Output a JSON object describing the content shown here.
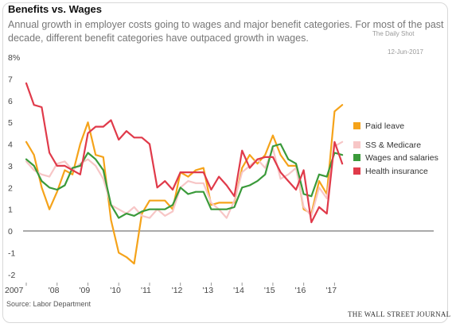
{
  "header": {
    "title": "Benefits vs. Wages",
    "subtitle": "Annual growth in employer costs going to wages and major benefit categories. For most of the past decade, different benefit categories have outpaced growth in wages."
  },
  "watermark": {
    "source_label": "The Daily Shot",
    "date_label": "12-Jun-2017"
  },
  "footer": {
    "source": "Source: Labor Department",
    "publisher": "THE WALL STREET JOURNAL"
  },
  "chart_data": {
    "type": "line",
    "y_unit_top_label": "8%",
    "y_ticks": [
      "7",
      "6",
      "5",
      "4",
      "3",
      "2",
      "1",
      "0",
      "-1",
      "-2"
    ],
    "x_ticks": [
      "2007",
      "'08",
      "'09",
      "'10",
      "'11",
      "'12",
      "'13",
      "'14",
      "'15",
      "'16",
      "'17"
    ],
    "xlim": [
      2007.0,
      2017.3
    ],
    "ylim": [
      -2.3,
      8.0
    ],
    "zero_line": true,
    "legend_position": "right",
    "series": [
      {
        "name": "Paid leave",
        "color": "#f5a31a",
        "points": [
          [
            2007.0,
            4.1
          ],
          [
            2007.25,
            3.5
          ],
          [
            2007.5,
            2.0
          ],
          [
            2007.75,
            1.0
          ],
          [
            2008.0,
            1.8
          ],
          [
            2008.25,
            2.8
          ],
          [
            2008.5,
            2.6
          ],
          [
            2008.75,
            4.0
          ],
          [
            2009.0,
            5.0
          ],
          [
            2009.25,
            3.5
          ],
          [
            2009.5,
            3.4
          ],
          [
            2009.75,
            0.5
          ],
          [
            2010.0,
            -1.0
          ],
          [
            2010.25,
            -1.2
          ],
          [
            2010.5,
            -1.5
          ],
          [
            2010.75,
            0.8
          ],
          [
            2011.0,
            1.4
          ],
          [
            2011.25,
            1.4
          ],
          [
            2011.5,
            1.4
          ],
          [
            2011.75,
            1.0
          ],
          [
            2012.0,
            2.7
          ],
          [
            2012.25,
            2.5
          ],
          [
            2012.5,
            2.8
          ],
          [
            2012.75,
            2.9
          ],
          [
            2013.0,
            1.2
          ],
          [
            2013.25,
            1.3
          ],
          [
            2013.5,
            1.3
          ],
          [
            2013.75,
            1.3
          ],
          [
            2014.0,
            2.9
          ],
          [
            2014.25,
            3.5
          ],
          [
            2014.5,
            3.1
          ],
          [
            2014.75,
            3.5
          ],
          [
            2015.0,
            4.4
          ],
          [
            2015.25,
            3.5
          ],
          [
            2015.5,
            3.0
          ],
          [
            2015.75,
            3.0
          ],
          [
            2016.0,
            1.0
          ],
          [
            2016.25,
            0.8
          ],
          [
            2016.5,
            2.3
          ],
          [
            2016.75,
            1.7
          ],
          [
            2017.0,
            5.5
          ],
          [
            2017.25,
            5.8
          ]
        ]
      },
      {
        "name": "SS & Medicare",
        "color": "#f7c6c6",
        "points": [
          [
            2007.0,
            3.2
          ],
          [
            2007.25,
            2.8
          ],
          [
            2007.5,
            2.6
          ],
          [
            2007.75,
            2.5
          ],
          [
            2008.0,
            3.1
          ],
          [
            2008.25,
            3.2
          ],
          [
            2008.5,
            2.8
          ],
          [
            2008.75,
            3.1
          ],
          [
            2009.0,
            3.3
          ],
          [
            2009.25,
            3.0
          ],
          [
            2009.5,
            2.4
          ],
          [
            2009.75,
            1.2
          ],
          [
            2010.0,
            1.0
          ],
          [
            2010.25,
            0.8
          ],
          [
            2010.5,
            1.1
          ],
          [
            2010.75,
            0.7
          ],
          [
            2011.0,
            0.6
          ],
          [
            2011.25,
            1.0
          ],
          [
            2011.5,
            0.7
          ],
          [
            2011.75,
            0.9
          ],
          [
            2012.0,
            2.0
          ],
          [
            2012.25,
            2.3
          ],
          [
            2012.5,
            2.2
          ],
          [
            2012.75,
            2.2
          ],
          [
            2013.0,
            1.3
          ],
          [
            2013.25,
            1.0
          ],
          [
            2013.5,
            0.6
          ],
          [
            2013.75,
            1.4
          ],
          [
            2014.0,
            2.7
          ],
          [
            2014.25,
            3.0
          ],
          [
            2014.5,
            3.3
          ],
          [
            2014.75,
            2.9
          ],
          [
            2015.0,
            3.8
          ],
          [
            2015.25,
            2.4
          ],
          [
            2015.5,
            2.6
          ],
          [
            2015.75,
            2.9
          ],
          [
            2016.0,
            1.1
          ],
          [
            2016.25,
            0.7
          ],
          [
            2016.5,
            2.0
          ],
          [
            2016.75,
            1.5
          ],
          [
            2017.0,
            3.9
          ],
          [
            2017.25,
            4.1
          ]
        ]
      },
      {
        "name": "Wages and salaries",
        "color": "#3a9a3a",
        "points": [
          [
            2007.0,
            3.3
          ],
          [
            2007.25,
            3.0
          ],
          [
            2007.5,
            2.3
          ],
          [
            2007.75,
            2.0
          ],
          [
            2008.0,
            1.9
          ],
          [
            2008.25,
            2.1
          ],
          [
            2008.5,
            2.9
          ],
          [
            2008.75,
            3.0
          ],
          [
            2009.0,
            3.6
          ],
          [
            2009.25,
            3.3
          ],
          [
            2009.5,
            2.8
          ],
          [
            2009.75,
            1.2
          ],
          [
            2010.0,
            0.6
          ],
          [
            2010.25,
            0.8
          ],
          [
            2010.5,
            0.7
          ],
          [
            2010.75,
            0.9
          ],
          [
            2011.0,
            1.0
          ],
          [
            2011.25,
            1.0
          ],
          [
            2011.5,
            1.0
          ],
          [
            2011.75,
            1.2
          ],
          [
            2012.0,
            2.0
          ],
          [
            2012.25,
            1.7
          ],
          [
            2012.5,
            1.8
          ],
          [
            2012.75,
            1.8
          ],
          [
            2013.0,
            1.0
          ],
          [
            2013.25,
            1.0
          ],
          [
            2013.5,
            1.0
          ],
          [
            2013.75,
            1.1
          ],
          [
            2014.0,
            2.0
          ],
          [
            2014.25,
            2.1
          ],
          [
            2014.5,
            2.3
          ],
          [
            2014.75,
            2.6
          ],
          [
            2015.0,
            3.9
          ],
          [
            2015.25,
            4.0
          ],
          [
            2015.5,
            3.3
          ],
          [
            2015.75,
            3.1
          ],
          [
            2016.0,
            1.7
          ],
          [
            2016.25,
            1.6
          ],
          [
            2016.5,
            2.6
          ],
          [
            2016.75,
            2.5
          ],
          [
            2017.0,
            3.6
          ],
          [
            2017.25,
            3.5
          ]
        ]
      },
      {
        "name": "Health insurance",
        "color": "#e03a4a",
        "points": [
          [
            2007.0,
            6.8
          ],
          [
            2007.25,
            5.8
          ],
          [
            2007.5,
            5.7
          ],
          [
            2007.75,
            3.6
          ],
          [
            2008.0,
            3.0
          ],
          [
            2008.25,
            3.0
          ],
          [
            2008.5,
            2.8
          ],
          [
            2008.75,
            2.6
          ],
          [
            2009.0,
            4.5
          ],
          [
            2009.25,
            4.8
          ],
          [
            2009.5,
            4.8
          ],
          [
            2009.75,
            5.1
          ],
          [
            2010.0,
            4.2
          ],
          [
            2010.25,
            4.6
          ],
          [
            2010.5,
            4.3
          ],
          [
            2010.75,
            4.3
          ],
          [
            2011.0,
            4.0
          ],
          [
            2011.25,
            2.0
          ],
          [
            2011.5,
            2.3
          ],
          [
            2011.75,
            1.9
          ],
          [
            2012.0,
            2.7
          ],
          [
            2012.25,
            2.7
          ],
          [
            2012.5,
            2.7
          ],
          [
            2012.75,
            2.7
          ],
          [
            2013.0,
            1.9
          ],
          [
            2013.25,
            2.5
          ],
          [
            2013.5,
            2.1
          ],
          [
            2013.75,
            1.6
          ],
          [
            2014.0,
            3.7
          ],
          [
            2014.25,
            2.9
          ],
          [
            2014.5,
            3.3
          ],
          [
            2014.75,
            3.4
          ],
          [
            2015.0,
            3.4
          ],
          [
            2015.25,
            2.7
          ],
          [
            2015.5,
            2.3
          ],
          [
            2015.75,
            1.9
          ],
          [
            2016.0,
            2.8
          ],
          [
            2016.25,
            0.4
          ],
          [
            2016.5,
            1.1
          ],
          [
            2016.75,
            0.8
          ],
          [
            2017.0,
            4.1
          ],
          [
            2017.25,
            3.1
          ]
        ]
      }
    ]
  }
}
